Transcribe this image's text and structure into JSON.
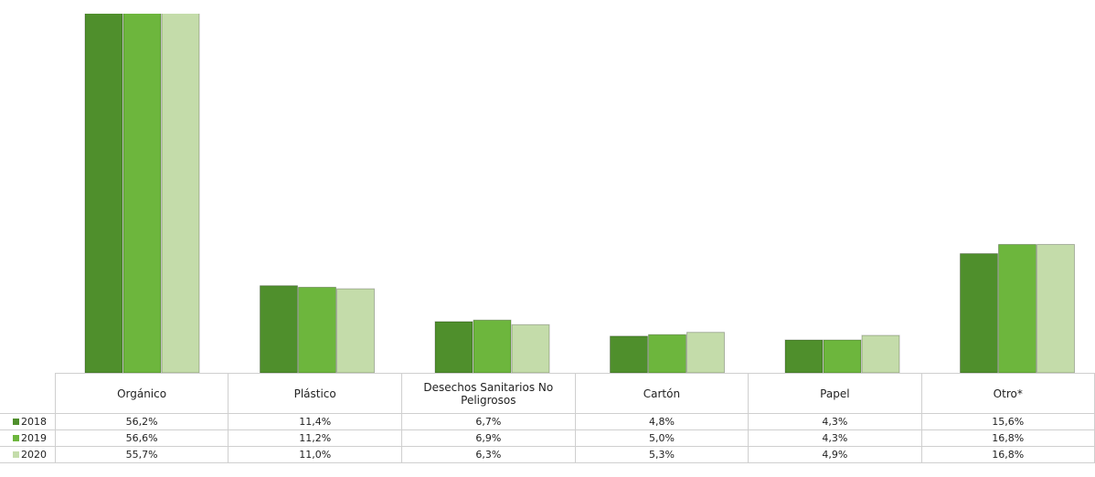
{
  "chart_data": {
    "type": "bar",
    "categories": [
      "Orgánico",
      "Plástico",
      "Desechos Sanitarios No Peligrosos",
      "Cartón",
      "Papel",
      "Otro*"
    ],
    "series": [
      {
        "name": "2018",
        "color": "#4f8f2c",
        "values": [
          56.2,
          11.4,
          6.7,
          4.8,
          4.3,
          15.6
        ],
        "value_labels": [
          "56,2%",
          "11,4%",
          "6,7%",
          "4,8%",
          "4,3%",
          "15,6%"
        ]
      },
      {
        "name": "2019",
        "color": "#6db63d",
        "values": [
          56.6,
          11.2,
          6.9,
          5.0,
          4.3,
          16.8
        ],
        "value_labels": [
          "56,6%",
          "11,2%",
          "6,9%",
          "5,0%",
          "4,3%",
          "16,8%"
        ]
      },
      {
        "name": "2020",
        "color": "#c4dcaa",
        "values": [
          55.7,
          11.0,
          6.3,
          5.3,
          4.9,
          16.8
        ],
        "value_labels": [
          "55,7%",
          "11,0%",
          "6,3%",
          "5,3%",
          "4,9%",
          "16,8%"
        ]
      }
    ],
    "ylim": [
      0,
      47
    ]
  }
}
